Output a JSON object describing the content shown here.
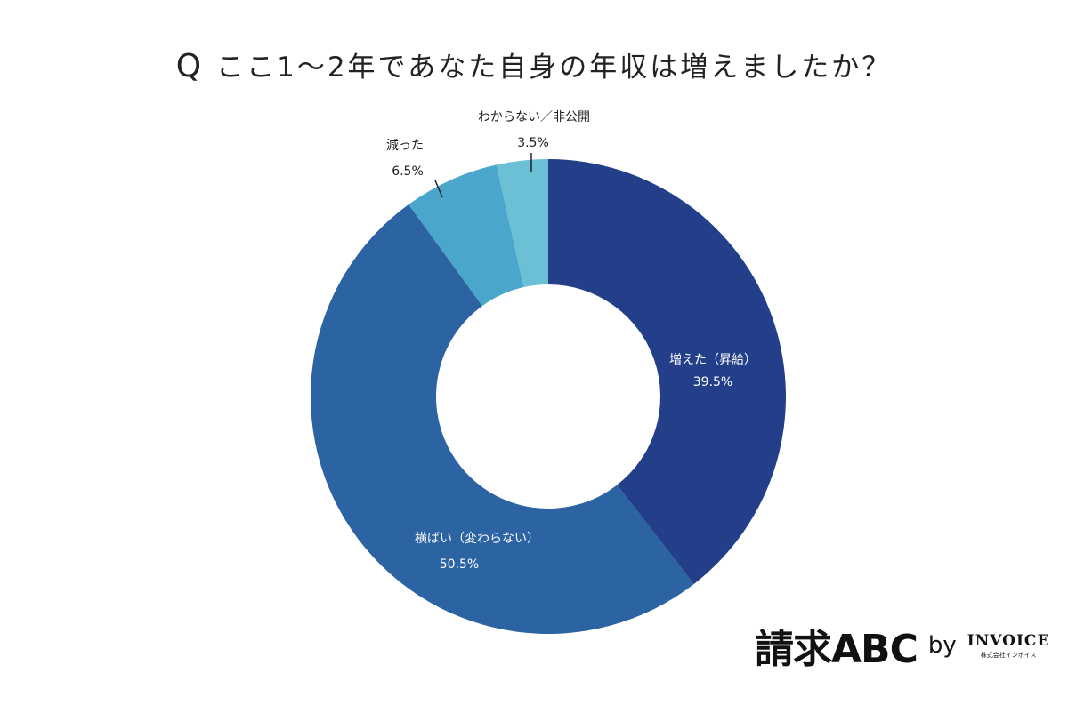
{
  "title": {
    "q_mark": "Q",
    "text": "ここ1〜2年であなた自身の年収は増えましたか？"
  },
  "colors": {
    "increased": "#233f8a",
    "unchanged": "#2b63a3",
    "decreased": "#4aa6cb",
    "unknown": "#6cc0d6",
    "background": "#ffffff"
  },
  "labels": {
    "increased": {
      "name": "増えた（昇給）",
      "value": "39.5%"
    },
    "unchanged": {
      "name": "横ばい（変わらない）",
      "value": "50.5%"
    },
    "decreased": {
      "name": "減った",
      "value": "6.5%"
    },
    "unknown": {
      "name": "わからない／非公開",
      "value": "3.5%"
    }
  },
  "logo": {
    "main": "請求ABC",
    "by": "by",
    "brand": "INVOICE",
    "company": "株式会社インボイス"
  },
  "chart_data": {
    "type": "pie",
    "subtype": "donut",
    "title": "Q ここ1〜2年であなた自身の年収は増えましたか？",
    "categories": [
      "増えた（昇給）",
      "横ばい（変わらない）",
      "減った",
      "わからない／非公開"
    ],
    "values": [
      39.5,
      50.5,
      6.5,
      3.5
    ],
    "unit": "%",
    "start_angle": "12 o'clock",
    "direction": "clockwise",
    "colors": [
      "#233f8a",
      "#2b63a3",
      "#4aa6cb",
      "#6cc0d6"
    ],
    "legend": "none (inline labels)"
  }
}
